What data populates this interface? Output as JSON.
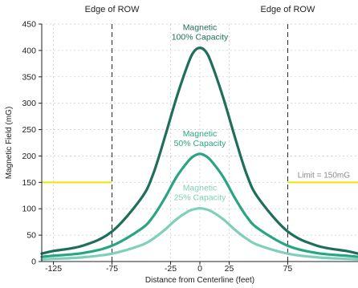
{
  "chart_data": {
    "type": "line",
    "xlabel": "Distance from Centerline (feet)",
    "ylabel": "Magnetic Field (mG)",
    "xlim": [
      -135,
      135
    ],
    "ylim": [
      0,
      450
    ],
    "x_ticks": [
      -125,
      -75,
      -25,
      0,
      25,
      75
    ],
    "y_ticks": [
      0,
      50,
      100,
      150,
      200,
      250,
      300,
      350,
      400,
      450
    ],
    "grid": true,
    "edges": {
      "left": {
        "x": -75,
        "label": "Edge of ROW"
      },
      "right": {
        "x": 75,
        "label": "Edge of ROW"
      }
    },
    "limit": {
      "value": 150,
      "label": "Limit = 150mG",
      "color": "#f2e200"
    },
    "series": [
      {
        "name": "Magnetic 100% Capacity",
        "label_lines": [
          "Magnetic",
          "100% Capacity"
        ],
        "color": "#1f6e5c",
        "x": [
          -135,
          -125,
          -100,
          -75,
          -50,
          -40,
          -30,
          -20,
          -10,
          -5,
          0,
          5,
          10,
          20,
          30,
          40,
          50,
          75,
          100,
          125,
          135
        ],
        "values": [
          15,
          20,
          30,
          57,
          120,
          165,
          235,
          310,
          375,
          398,
          405,
          398,
          375,
          310,
          235,
          165,
          120,
          57,
          30,
          20,
          15
        ]
      },
      {
        "name": "Magnetic 50% Capacity",
        "label_lines": [
          "Magnetic",
          "50% Capacity"
        ],
        "color": "#2aa583",
        "x": [
          -135,
          -125,
          -100,
          -75,
          -50,
          -40,
          -30,
          -20,
          -10,
          -5,
          0,
          5,
          10,
          20,
          30,
          40,
          50,
          75,
          100,
          125,
          135
        ],
        "values": [
          9,
          11,
          16,
          30,
          62,
          85,
          120,
          160,
          190,
          200,
          204,
          200,
          190,
          160,
          120,
          85,
          62,
          30,
          16,
          11,
          9
        ]
      },
      {
        "name": "Magnetic 25% Capacity",
        "label_lines": [
          "Magnetic",
          "25% Capacity"
        ],
        "color": "#7fcfba",
        "x": [
          -135,
          -125,
          -100,
          -75,
          -50,
          -40,
          -30,
          -20,
          -10,
          -5,
          0,
          5,
          10,
          20,
          30,
          40,
          50,
          75,
          100,
          125,
          135
        ],
        "values": [
          4,
          5,
          8,
          15,
          31,
          43,
          60,
          80,
          95,
          99,
          101,
          99,
          95,
          80,
          60,
          43,
          31,
          15,
          8,
          5,
          4
        ]
      }
    ]
  }
}
